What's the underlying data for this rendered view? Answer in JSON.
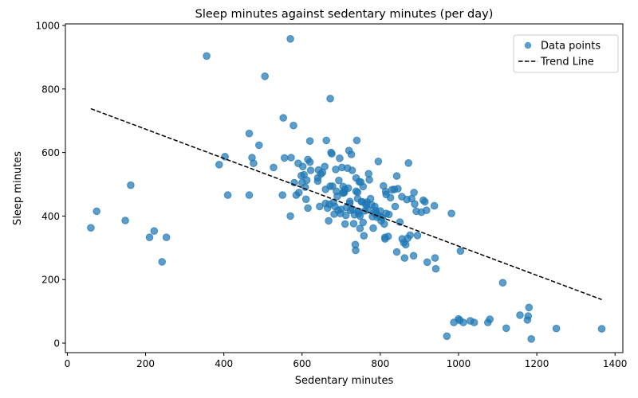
{
  "chart_data": {
    "type": "scatter",
    "title": "Sleep minutes against sedentary minutes (per day)",
    "xlabel": "Sedentary minutes",
    "ylabel": "Sleep minutes",
    "xlim": [
      -5,
      1420
    ],
    "ylim": [
      -30,
      1005
    ],
    "xticks": [
      0,
      200,
      400,
      600,
      800,
      1000,
      1200,
      1400
    ],
    "yticks": [
      0,
      200,
      400,
      600,
      800,
      1000
    ],
    "grid": false,
    "legend_position": "top-right",
    "colors": {
      "points": "#1f77b4",
      "trend": "#000000"
    },
    "series": [
      {
        "name": "Data points",
        "points": [
          [
            60,
            363
          ],
          [
            75,
            415
          ],
          [
            148,
            386
          ],
          [
            162,
            497
          ],
          [
            210,
            333
          ],
          [
            222,
            353
          ],
          [
            242,
            256
          ],
          [
            253,
            333
          ],
          [
            356,
            904
          ],
          [
            388,
            562
          ],
          [
            403,
            587
          ],
          [
            410,
            466
          ],
          [
            465,
            466
          ],
          [
            465,
            660
          ],
          [
            472,
            584
          ],
          [
            476,
            566
          ],
          [
            490,
            623
          ],
          [
            505,
            840
          ],
          [
            527,
            553
          ],
          [
            550,
            466
          ],
          [
            552,
            709
          ],
          [
            555,
            583
          ],
          [
            570,
            400
          ],
          [
            570,
            958
          ],
          [
            572,
            584
          ],
          [
            578,
            685
          ],
          [
            580,
            505
          ],
          [
            585,
            466
          ],
          [
            590,
            566
          ],
          [
            592,
            474
          ],
          [
            598,
            527
          ],
          [
            600,
            505
          ],
          [
            602,
            556
          ],
          [
            605,
            530
          ],
          [
            608,
            491
          ],
          [
            610,
            453
          ],
          [
            612,
            513
          ],
          [
            615,
            425
          ],
          [
            615,
            578
          ],
          [
            620,
            636
          ],
          [
            620,
            570
          ],
          [
            622,
            544
          ],
          [
            640,
            510
          ],
          [
            640,
            520
          ],
          [
            642,
            545
          ],
          [
            645,
            430
          ],
          [
            648,
            532
          ],
          [
            652,
            537
          ],
          [
            658,
            556
          ],
          [
            660,
            484
          ],
          [
            660,
            440
          ],
          [
            662,
            638
          ],
          [
            665,
            425
          ],
          [
            668,
            385
          ],
          [
            670,
            437
          ],
          [
            672,
            494
          ],
          [
            672,
            770
          ],
          [
            674,
            600
          ],
          [
            676,
            596
          ],
          [
            678,
            494
          ],
          [
            680,
            443
          ],
          [
            682,
            406
          ],
          [
            684,
            430
          ],
          [
            686,
            547
          ],
          [
            688,
            478
          ],
          [
            690,
            462
          ],
          [
            692,
            418
          ],
          [
            694,
            512
          ],
          [
            696,
            582
          ],
          [
            698,
            408
          ],
          [
            700,
            421
          ],
          [
            702,
            553
          ],
          [
            704,
            472
          ],
          [
            705,
            493
          ],
          [
            706,
            475
          ],
          [
            708,
            474
          ],
          [
            710,
            484
          ],
          [
            710,
            375
          ],
          [
            712,
            402
          ],
          [
            714,
            427
          ],
          [
            716,
            551
          ],
          [
            718,
            488
          ],
          [
            720,
            606
          ],
          [
            722,
            440
          ],
          [
            722,
            446
          ],
          [
            724,
            418
          ],
          [
            726,
            594
          ],
          [
            728,
            544
          ],
          [
            730,
            420
          ],
          [
            732,
            376
          ],
          [
            734,
            404
          ],
          [
            736,
            310
          ],
          [
            737,
            292
          ],
          [
            738,
            478
          ],
          [
            738,
            520
          ],
          [
            740,
            638
          ],
          [
            742,
            475
          ],
          [
            742,
            455
          ],
          [
            744,
            415
          ],
          [
            745,
            407
          ],
          [
            746,
            508
          ],
          [
            748,
            400
          ],
          [
            748,
            361
          ],
          [
            750,
            507
          ],
          [
            752,
            445
          ],
          [
            754,
            445
          ],
          [
            756,
            493
          ],
          [
            756,
            380
          ],
          [
            758,
            338
          ],
          [
            760,
            416
          ],
          [
            762,
            439
          ],
          [
            764,
            434
          ],
          [
            766,
            444
          ],
          [
            768,
            420
          ],
          [
            770,
            533
          ],
          [
            772,
            514
          ],
          [
            775,
            455
          ],
          [
            778,
            435
          ],
          [
            780,
            398
          ],
          [
            782,
            362
          ],
          [
            784,
            410
          ],
          [
            786,
            430
          ],
          [
            788,
            417
          ],
          [
            790,
            408
          ],
          [
            792,
            396
          ],
          [
            795,
            572
          ],
          [
            798,
            400
          ],
          [
            800,
            416
          ],
          [
            802,
            385
          ],
          [
            805,
            395
          ],
          [
            808,
            495
          ],
          [
            810,
            375
          ],
          [
            812,
            333
          ],
          [
            812,
            328
          ],
          [
            814,
            477
          ],
          [
            815,
            408
          ],
          [
            815,
            468
          ],
          [
            820,
            336
          ],
          [
            822,
            405
          ],
          [
            826,
            458
          ],
          [
            830,
            483
          ],
          [
            836,
            484
          ],
          [
            838,
            430
          ],
          [
            842,
            526
          ],
          [
            842,
            287
          ],
          [
            845,
            486
          ],
          [
            850,
            381
          ],
          [
            855,
            461
          ],
          [
            856,
            328
          ],
          [
            860,
            316
          ],
          [
            862,
            268
          ],
          [
            865,
            310
          ],
          [
            868,
            452
          ],
          [
            870,
            330
          ],
          [
            872,
            567
          ],
          [
            876,
            340
          ],
          [
            880,
            455
          ],
          [
            885,
            275
          ],
          [
            886,
            474
          ],
          [
            888,
            438
          ],
          [
            892,
            415
          ],
          [
            895,
            339
          ],
          [
            905,
            412
          ],
          [
            910,
            450
          ],
          [
            914,
            445
          ],
          [
            918,
            418
          ],
          [
            920,
            255
          ],
          [
            938,
            432
          ],
          [
            940,
            268
          ],
          [
            942,
            234
          ],
          [
            982,
            408
          ],
          [
            988,
            65
          ],
          [
            1000,
            76
          ],
          [
            1003,
            72
          ],
          [
            1005,
            290
          ],
          [
            1012,
            65
          ],
          [
            1030,
            70
          ],
          [
            1040,
            65
          ],
          [
            1075,
            65
          ],
          [
            1080,
            75
          ],
          [
            1113,
            190
          ],
          [
            1122,
            47
          ],
          [
            1157,
            88
          ],
          [
            1176,
            73
          ],
          [
            1178,
            85
          ],
          [
            1180,
            112
          ],
          [
            1186,
            13
          ],
          [
            1250,
            46
          ],
          [
            1366,
            45
          ],
          [
            970,
            22
          ]
        ]
      },
      {
        "name": "Trend Line",
        "line": [
          [
            60,
            738
          ],
          [
            1366,
            137
          ]
        ]
      }
    ]
  }
}
